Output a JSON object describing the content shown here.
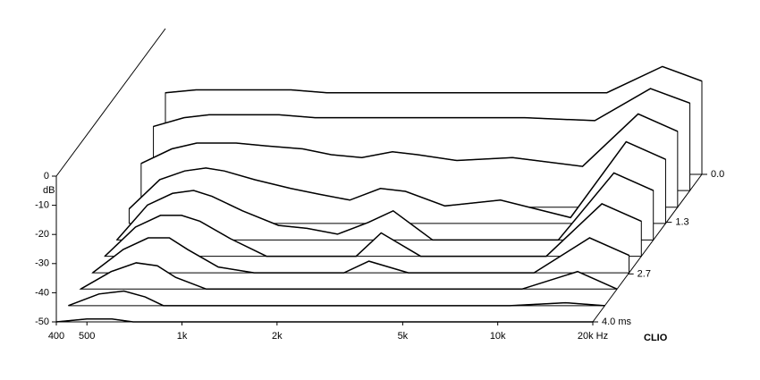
{
  "chart_data": {
    "type": "waterfall",
    "ylabel": "dB",
    "brand": "CLIO",
    "log_x": true,
    "xlim": [
      400,
      20000
    ],
    "xticks": [
      400,
      500,
      {
        "value": 1000,
        "label": "1k"
      },
      {
        "value": 2000,
        "label": "2k"
      },
      {
        "value": 5000,
        "label": "5k"
      },
      {
        "value": 10000,
        "label": "10k"
      },
      {
        "value": 20000,
        "label": "20k Hz"
      }
    ],
    "ylim": [
      -50,
      0
    ],
    "yticks": [
      0,
      -10,
      -20,
      -30,
      -40,
      -50
    ],
    "zlim": [
      0,
      4
    ],
    "zticks": [
      {
        "value": 0,
        "label": "0.0"
      },
      {
        "value": 1.3,
        "label": "1.3"
      },
      {
        "value": 2.7,
        "label": "2.7"
      },
      {
        "value": 4,
        "label": "4.0 ms"
      }
    ],
    "color": "#000000",
    "x": [
      400,
      500,
      600,
      700,
      800,
      1000,
      1300,
      1600,
      2000,
      2500,
      3000,
      4000,
      6000,
      10000,
      15000,
      20000
    ],
    "z": [
      0,
      0.44,
      0.89,
      1.33,
      1.78,
      2.22,
      2.67,
      3.11,
      3.56,
      4
    ],
    "series": [
      {
        "values": [
          -22,
          -21,
          -21,
          -21,
          -21,
          -21,
          -22,
          -22,
          -22,
          -22,
          -22,
          -22,
          -22,
          -22,
          -13,
          -18
        ]
      },
      {
        "values": [
          -28,
          -25,
          -24,
          -24,
          -24,
          -24,
          -25,
          -25,
          -25,
          -25,
          -25,
          -25,
          -25,
          -26,
          -15,
          -20
        ]
      },
      {
        "values": [
          -35,
          -30,
          -28,
          -28,
          -28,
          -29,
          -30,
          -32,
          -33,
          -31,
          -32,
          -34,
          -33,
          -36,
          -18,
          -24
        ]
      },
      {
        "values": [
          -45,
          -35,
          -32,
          -31,
          -32,
          -35,
          -38,
          -40,
          -42,
          -38,
          -39,
          -44,
          -42,
          -48,
          -22,
          -28
        ]
      },
      {
        "values": [
          -50,
          -38,
          -34,
          -33,
          -35,
          -40,
          -45,
          -46,
          -48,
          -44,
          -40,
          -50,
          -50,
          -50,
          -27,
          -33
        ]
      },
      {
        "values": [
          -50,
          -40,
          -36,
          -36,
          -38,
          -44,
          -50,
          -50,
          -50,
          -50,
          -42,
          -50,
          -50,
          -50,
          -32,
          -38
        ]
      },
      {
        "values": [
          -50,
          -42,
          -38,
          -38,
          -42,
          -48,
          -50,
          -50,
          -50,
          -50,
          -46,
          -50,
          -50,
          -50,
          -38,
          -44
        ]
      },
      {
        "values": [
          -50,
          -44,
          -41,
          -42,
          -46,
          -50,
          -50,
          -50,
          -50,
          -50,
          -50,
          -50,
          -50,
          -50,
          -44,
          -50
        ]
      },
      {
        "values": [
          -50,
          -46,
          -45,
          -47,
          -50,
          -50,
          -50,
          -50,
          -50,
          -50,
          -50,
          -50,
          -50,
          -50,
          -49,
          -50
        ]
      },
      {
        "values": [
          -50,
          -49,
          -49,
          -50,
          -50,
          -50,
          -50,
          -50,
          -50,
          -50,
          -50,
          -50,
          -50,
          -50,
          -50,
          -50
        ]
      }
    ]
  }
}
